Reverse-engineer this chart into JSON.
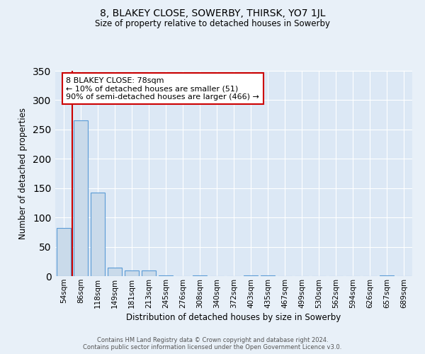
{
  "title": "8, BLAKEY CLOSE, SOWERBY, THIRSK, YO7 1JL",
  "subtitle": "Size of property relative to detached houses in Sowerby",
  "xlabel": "Distribution of detached houses by size in Sowerby",
  "ylabel": "Number of detached properties",
  "bar_labels": [
    "54sqm",
    "86sqm",
    "118sqm",
    "149sqm",
    "181sqm",
    "213sqm",
    "245sqm",
    "276sqm",
    "308sqm",
    "340sqm",
    "372sqm",
    "403sqm",
    "435sqm",
    "467sqm",
    "499sqm",
    "530sqm",
    "562sqm",
    "594sqm",
    "626sqm",
    "657sqm",
    "689sqm"
  ],
  "bar_values": [
    82,
    265,
    143,
    15,
    10,
    10,
    1,
    0,
    1,
    0,
    0,
    1,
    1,
    0,
    0,
    0,
    0,
    0,
    0,
    1,
    0
  ],
  "bar_color": "#c9daea",
  "bar_edge_color": "#5b9bd5",
  "background_color": "#e8f0f8",
  "plot_bg_color": "#dce8f5",
  "grid_color": "#ffffff",
  "annotation_line1": "8 BLAKEY CLOSE: 78sqm",
  "annotation_line2": "← 10% of detached houses are smaller (51)",
  "annotation_line3": "90% of semi-detached houses are larger (466) →",
  "marker_color": "#cc0000",
  "ylim": [
    0,
    350
  ],
  "yticks": [
    0,
    50,
    100,
    150,
    200,
    250,
    300,
    350
  ],
  "footer_line1": "Contains HM Land Registry data © Crown copyright and database right 2024.",
  "footer_line2": "Contains public sector information licensed under the Open Government Licence v3.0."
}
